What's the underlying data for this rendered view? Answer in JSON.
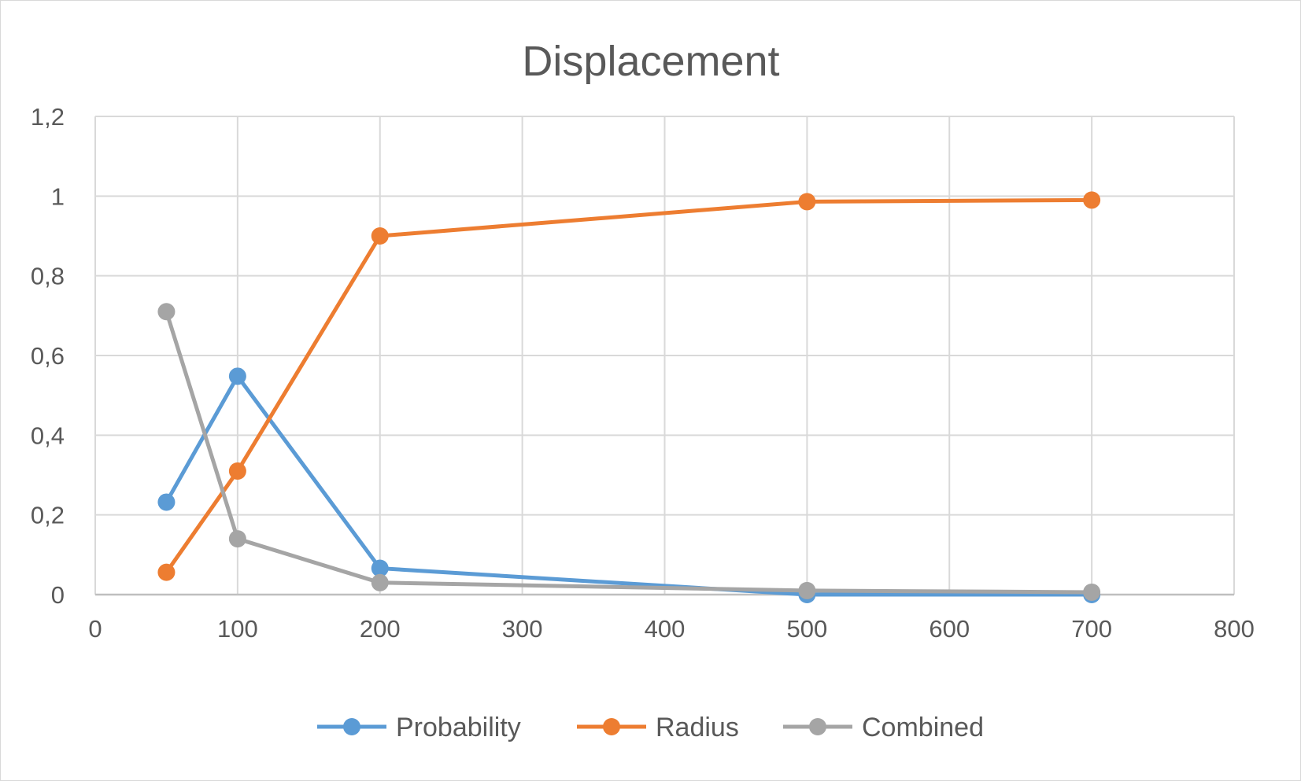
{
  "chart_data": {
    "type": "scatter",
    "title": "Displacement",
    "xlabel": "",
    "ylabel": "",
    "xlim": [
      0,
      800
    ],
    "ylim": [
      0,
      1.2
    ],
    "x_ticks": [
      "0",
      "100",
      "200",
      "300",
      "400",
      "500",
      "600",
      "700",
      "800"
    ],
    "y_ticks": [
      "0",
      "0,2",
      "0,4",
      "0,6",
      "0,8",
      "1",
      "1,2"
    ],
    "grid": true,
    "legend_position": "bottom",
    "series": [
      {
        "name": "Probability",
        "color": "#5b9bd5",
        "points": [
          [
            50,
            0.232
          ],
          [
            100,
            0.548
          ],
          [
            200,
            0.066
          ],
          [
            500,
            0.0
          ],
          [
            700,
            0.0
          ]
        ]
      },
      {
        "name": "Radius",
        "color": "#ed7d31",
        "points": [
          [
            50,
            0.056
          ],
          [
            100,
            0.31
          ],
          [
            200,
            0.9
          ],
          [
            500,
            0.986
          ],
          [
            700,
            0.99
          ]
        ]
      },
      {
        "name": "Combined",
        "color": "#a5a5a5",
        "points": [
          [
            50,
            0.71
          ],
          [
            100,
            0.14
          ],
          [
            200,
            0.03
          ],
          [
            500,
            0.01
          ],
          [
            700,
            0.006
          ]
        ]
      }
    ]
  }
}
